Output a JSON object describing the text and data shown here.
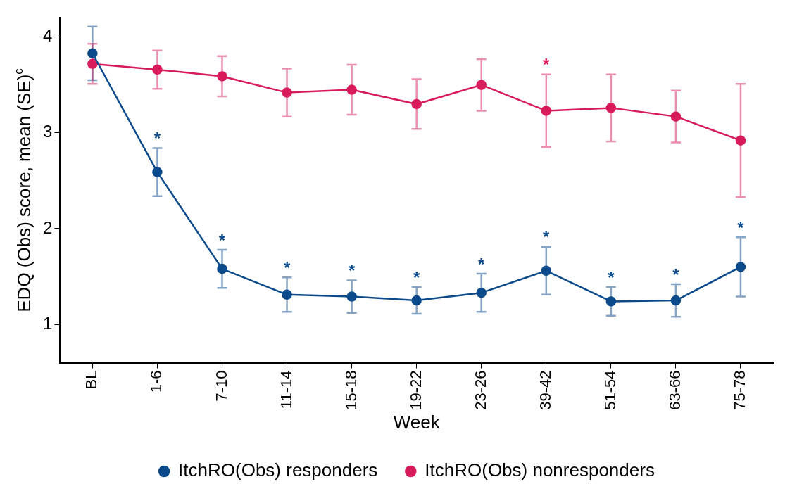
{
  "chart_data": {
    "type": "line",
    "xlabel": "Week",
    "ylabel": "EDQ (Obs) score, mean (SE)$^{c}$",
    "categories": [
      "BL",
      "1-6",
      "7-10",
      "11-14",
      "15-18",
      "19-22",
      "23-26",
      "39-42",
      "51-54",
      "63-66",
      "75-78"
    ],
    "ylim": [
      0.6,
      4.2
    ],
    "yticks": [
      1,
      2,
      3,
      4
    ],
    "series": [
      {
        "name": "ItchRO(Obs) responders",
        "color": "#0b4a8b",
        "values": [
          3.83,
          2.59,
          1.58,
          1.31,
          1.29,
          1.25,
          1.33,
          1.56,
          1.24,
          1.25,
          1.6
        ],
        "errors": [
          0.28,
          0.25,
          0.2,
          0.18,
          0.17,
          0.14,
          0.2,
          0.25,
          0.15,
          0.17,
          0.31
        ]
      },
      {
        "name": "ItchRO(Obs) nonresponders",
        "color": "#d81b5a",
        "values": [
          3.72,
          3.66,
          3.59,
          3.42,
          3.45,
          3.3,
          3.5,
          3.23,
          3.26,
          3.17,
          2.92
        ],
        "errors": [
          0.21,
          0.2,
          0.21,
          0.25,
          0.26,
          0.26,
          0.27,
          0.38,
          0.35,
          0.27,
          0.59
        ]
      }
    ],
    "annotations": [
      {
        "text": "*",
        "x": "1-6",
        "y": 2.59
      },
      {
        "text": "*",
        "x": "7-10",
        "y": 1.58
      },
      {
        "text": "*",
        "x": "11-14",
        "y": 1.31
      },
      {
        "text": "*",
        "x": "15-18",
        "y": 1.29
      },
      {
        "text": "*",
        "x": "19-22",
        "y": 1.25
      },
      {
        "text": "*",
        "x": "23-26",
        "y": 1.33
      },
      {
        "text": "*",
        "x": "39-42",
        "y": 1.56
      },
      {
        "text": "*",
        "x": "39-42",
        "y": 3.23
      },
      {
        "text": "*",
        "x": "51-54",
        "y": 1.24
      },
      {
        "text": "*",
        "x": "63-66",
        "y": 1.25
      },
      {
        "text": "*",
        "x": "75-78",
        "y": 1.6
      }
    ],
    "marker": "circle",
    "line_style": "solid",
    "grid": false,
    "legend": "bottom"
  }
}
